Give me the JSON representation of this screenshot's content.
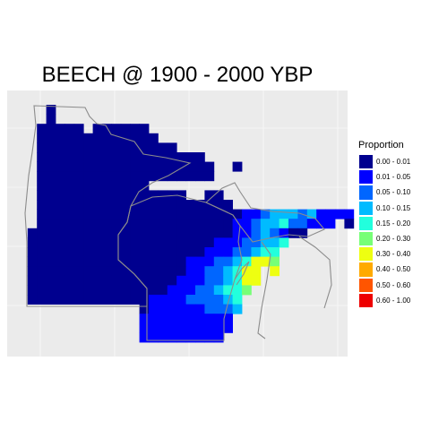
{
  "title": "BEECH @ 1900 - 2000 YBP",
  "legend": {
    "title": "Proportion",
    "classes": [
      {
        "label": "0.00 - 0.01",
        "color": "#00008F"
      },
      {
        "label": "0.01 - 0.05",
        "color": "#0000FF"
      },
      {
        "label": "0.05 - 0.10",
        "color": "#0066FF"
      },
      {
        "label": "0.10 - 0.15",
        "color": "#00BBFF"
      },
      {
        "label": "0.15 - 0.20",
        "color": "#22FFDD"
      },
      {
        "label": "0.20 - 0.30",
        "color": "#77FF77"
      },
      {
        "label": "0.30 - 0.40",
        "color": "#EEFF11"
      },
      {
        "label": "0.40 - 0.50",
        "color": "#FFAA00"
      },
      {
        "label": "0.50 - 0.60",
        "color": "#FF5500"
      },
      {
        "label": "0.60 - 1.00",
        "color": "#EE0000"
      }
    ]
  },
  "colors": {
    "panel_background": "#EBEBEB",
    "gridlines": "#FFFFFF",
    "state_outlines": "#8C8C8C"
  },
  "chart_data": {
    "type": "heatmap",
    "title": "BEECH @ 1900 - 2000 YBP",
    "variable": "Proportion",
    "grid": true,
    "legend_position": "right",
    "class_breaks": [
      0.0,
      0.01,
      0.05,
      0.1,
      0.15,
      0.2,
      0.3,
      0.4,
      0.5,
      0.6,
      1.0
    ],
    "class_ranks": [
      "0.00 - 0.01",
      "0.01 - 0.05",
      "0.05 - 0.10",
      "0.10 - 0.15",
      "0.15 - 0.20",
      "0.20 - 0.30",
      "0.30 - 0.40",
      "0.40 - 0.50",
      "0.50 - 0.60",
      "0.60 - 1.00"
    ],
    "grid_rows": [
      "....A.........................",
      "....A..........................",
      "...AAAAA.AAAAAA.................",
      "...AAAAAAAAAAAAA................",
      "...AAAAAAAAAAAAAAA..............",
      "...AAAAAAAAAAAAAAAAAA...........",
      "...AAAAAAAAAAAAAAAAAAA..A.......",
      "...AAAAAAAAAAAAAAAAAAA...........",
      "...AAAAAAAAAAAA..................",
      "...AAAAAAAAAAAAAAAA..AA..........",
      "...AAAAAAAAAAAAAAAAAAAAA..........",
      "...AAAAAAAAAAAAAAAAAAAAAABBCDDDCDBBBB",
      "...AAAAAAAAAAAAAAAAAAAAABBCDDECCBBB.A",
      "..AAAAAAAAAAAAAAAAAAAAAABBCDCBAA..",
      "..AAAAAAAAAAAAAAAAAAAABBBCCDDE.....",
      "..AAAAAAAAAAAAAAAAAAABBBCCDEE......",
      "..AAAAAAAAAAAAAAAAABBBCCDEGGF......",
      "..AAAAAAAAAAAAAAAAABBCCDEGG.G......",
      "..AAAAAAAAAAAAAAAABBBCCDEGG........",
      "..AAAAAAAAAAAAAAABBBCCDEEF.........",
      "..AAAAAAAAAAAAABBBBCCCCDE..........",
      "..............ABBBBBBCCCD..........",
      "..............BBBBBBBBBB...........",
      "..............BBBBBBBBBB...........",
      "..............BBBBBBBBB............"
    ]
  }
}
